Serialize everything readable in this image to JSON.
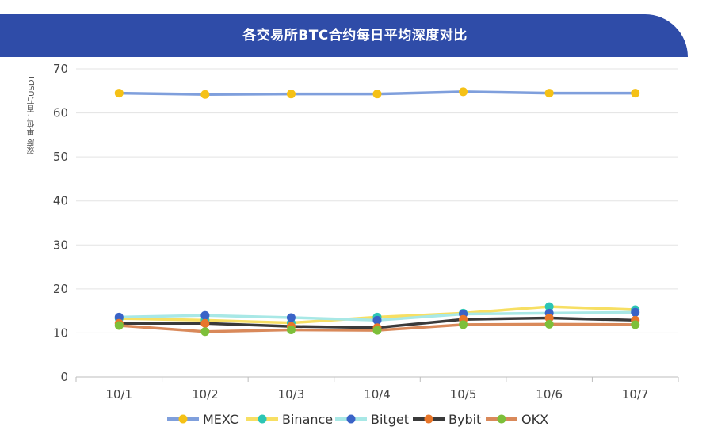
{
  "chart_data": {
    "type": "line",
    "title": "各交易所BTC合约每日平均深度对比",
    "ylabel": "深度 单位：百万USDT",
    "xlabel": "",
    "ylim": [
      0,
      70
    ],
    "yticks": [
      0,
      10,
      20,
      30,
      40,
      50,
      60,
      70
    ],
    "categories": [
      "10/1",
      "10/2",
      "10/3",
      "10/4",
      "10/5",
      "10/6",
      "10/7"
    ],
    "grid": true,
    "legend_position": "bottom",
    "series": [
      {
        "name": "MEXC",
        "line_color": "#7f9fdc",
        "marker_color": "#f5c116",
        "values": [
          64.5,
          64.2,
          64.3,
          64.3,
          64.8,
          64.5,
          64.5
        ]
      },
      {
        "name": "Binance",
        "line_color": "#f7df63",
        "marker_color": "#2cc5b5",
        "values": [
          13.3,
          12.9,
          12.3,
          13.6,
          14.5,
          16.0,
          15.3
        ]
      },
      {
        "name": "Bitget",
        "line_color": "#a8e8e6",
        "marker_color": "#3a63c7",
        "values": [
          13.6,
          14.0,
          13.5,
          12.9,
          14.3,
          14.5,
          14.7
        ]
      },
      {
        "name": "Bybit",
        "line_color": "#3a3a3a",
        "marker_color": "#e8762a",
        "values": [
          12.2,
          12.2,
          11.5,
          11.2,
          13.1,
          13.4,
          12.9
        ]
      },
      {
        "name": "OKX",
        "line_color": "#d9895a",
        "marker_color": "#7dbf3a",
        "values": [
          11.7,
          10.3,
          10.7,
          10.6,
          11.9,
          12.0,
          11.9
        ]
      }
    ]
  }
}
